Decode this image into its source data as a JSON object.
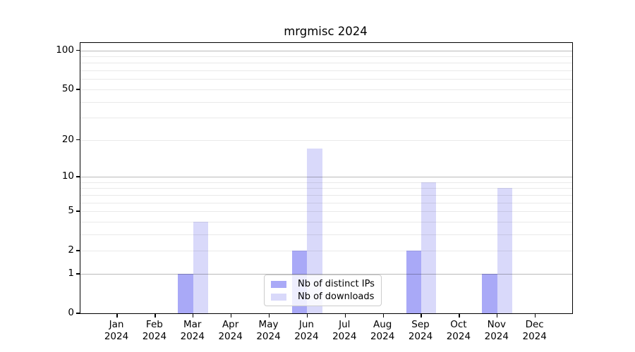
{
  "title": "mrgmisc 2024",
  "chart_data": {
    "type": "bar",
    "title": "mrgmisc 2024",
    "categories": [
      "Jan",
      "Feb",
      "Mar",
      "Apr",
      "May",
      "Jun",
      "Jul",
      "Aug",
      "Sep",
      "Oct",
      "Nov",
      "Dec"
    ],
    "year": "2024",
    "series": [
      {
        "name": "Nb of distinct IPs",
        "color": "#a9a9f7",
        "values": [
          0,
          0,
          1,
          0,
          0,
          2,
          0,
          0,
          2,
          0,
          1,
          0
        ]
      },
      {
        "name": "Nb of downloads",
        "color": "#d9d9fa",
        "values": [
          0,
          0,
          4,
          0,
          0,
          17,
          0,
          0,
          9,
          0,
          8,
          0
        ]
      }
    ],
    "xlabel": "",
    "ylabel": "",
    "yscale": "log1p",
    "ylim": [
      0,
      113
    ],
    "yticks": [
      100,
      50,
      20,
      10,
      5,
      2,
      1,
      0
    ],
    "major_grid_values": [
      1,
      10,
      100
    ],
    "minor_grid_values": [
      2,
      3,
      4,
      5,
      6,
      7,
      8,
      9,
      20,
      30,
      40,
      50,
      60,
      70,
      80,
      90
    ],
    "grid": true,
    "legend_position": "lower center",
    "bar_grouping": "paired-around-tick"
  },
  "legend": {
    "items": [
      {
        "label": "Nb of distinct IPs",
        "color": "#a9a9f7"
      },
      {
        "label": "Nb of downloads",
        "color": "#d9d9fa"
      }
    ]
  }
}
